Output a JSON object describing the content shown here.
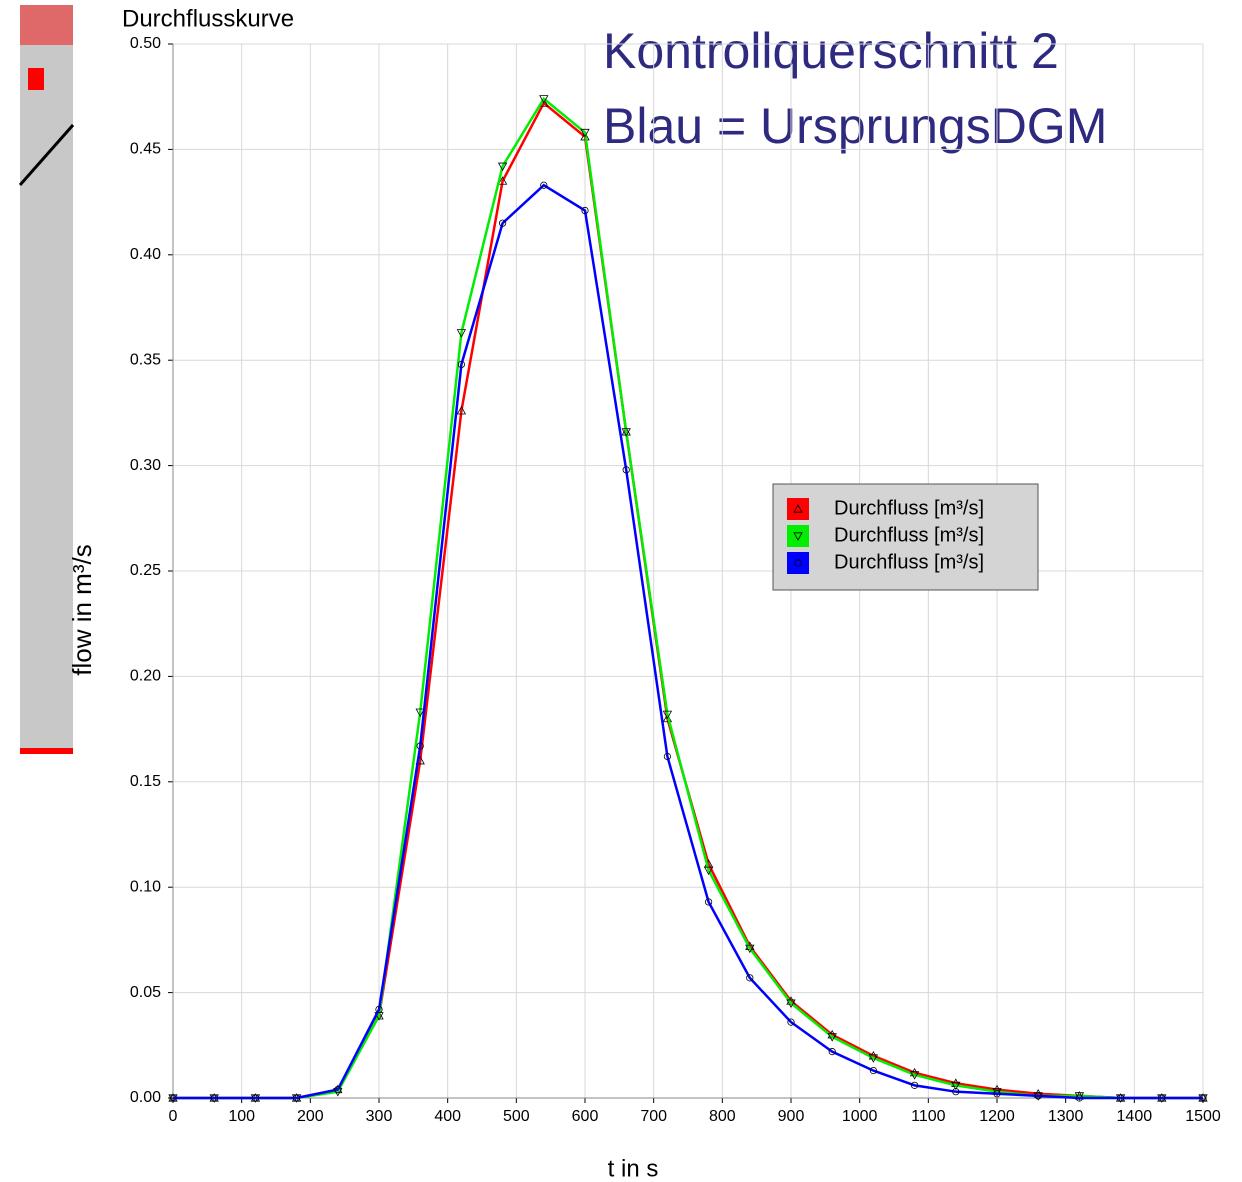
{
  "chart_data": {
    "type": "line",
    "title": "Durchflusskurve",
    "annotations": [
      "Kontrollquerschnitt 2",
      "Blau = UrsprungsDGM"
    ],
    "x_label": "t in s",
    "y_label": "flow in m³/s",
    "x": [
      0,
      60,
      120,
      180,
      240,
      300,
      360,
      420,
      480,
      540,
      600,
      660,
      720,
      780,
      840,
      900,
      960,
      1020,
      1080,
      1140,
      1200,
      1260,
      1320,
      1380,
      1440,
      1500
    ],
    "series": [
      {
        "name": "Durchfluss [m³/s]",
        "color": "#ff0000",
        "marker": "triangle-up",
        "values": [
          0,
          0,
          0,
          0,
          0.004,
          0.039,
          0.16,
          0.326,
          0.435,
          0.472,
          0.456,
          0.316,
          0.18,
          0.111,
          0.072,
          0.046,
          0.03,
          0.02,
          0.012,
          0.007,
          0.004,
          0.002,
          0.001,
          0,
          0,
          0
        ]
      },
      {
        "name": "Durchfluss [m³/s]",
        "color": "#00ee00",
        "marker": "triangle-down",
        "values": [
          0,
          0,
          0,
          0,
          0.003,
          0.039,
          0.183,
          0.363,
          0.442,
          0.474,
          0.458,
          0.316,
          0.182,
          0.108,
          0.071,
          0.045,
          0.029,
          0.019,
          0.011,
          0.006,
          0.003,
          0.001,
          0.001,
          0,
          0,
          0
        ]
      },
      {
        "name": "Durchfluss [m³/s]",
        "color": "#0000ff",
        "marker": "circle",
        "values": [
          0,
          0,
          0,
          0,
          0.004,
          0.042,
          0.167,
          0.348,
          0.415,
          0.433,
          0.421,
          0.298,
          0.162,
          0.093,
          0.057,
          0.036,
          0.022,
          0.013,
          0.006,
          0.003,
          0.002,
          0.001,
          0,
          0,
          0,
          0
        ]
      }
    ],
    "xlim": [
      0,
      1500
    ],
    "xticks": [
      0,
      100,
      200,
      300,
      400,
      500,
      600,
      700,
      800,
      900,
      1000,
      1100,
      1200,
      1300,
      1400,
      1500
    ],
    "ylim": [
      0,
      0.5
    ],
    "yticks": [
      {
        "value": 0,
        "label": "0.00"
      },
      {
        "value": 0.05,
        "label": "0.05"
      },
      {
        "value": 0.1,
        "label": "0.10"
      },
      {
        "value": 0.15,
        "label": "0.15"
      },
      {
        "value": 0.2,
        "label": "0.20"
      },
      {
        "value": 0.25,
        "label": "0.25"
      },
      {
        "value": 0.3,
        "label": "0.30"
      },
      {
        "value": 0.35,
        "label": "0.35"
      },
      {
        "value": 0.4,
        "label": "0.40"
      },
      {
        "value": 0.45,
        "label": "0.45"
      },
      {
        "value": 0.5,
        "label": "0.50"
      }
    ],
    "grid": true
  }
}
